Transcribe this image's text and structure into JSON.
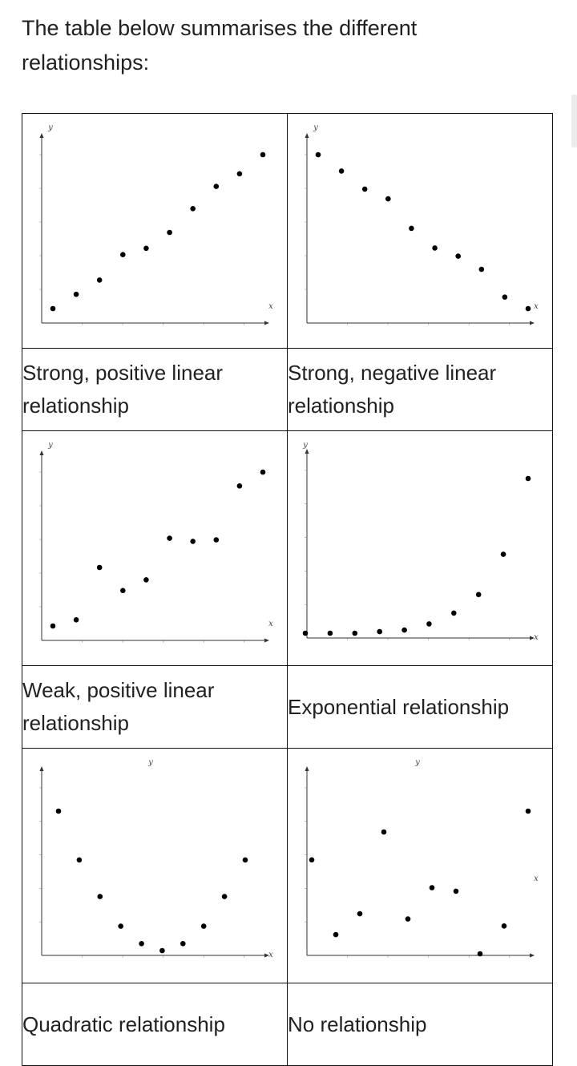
{
  "intro_text": "The table below summarises the different relationships:",
  "rows": [
    {
      "cells": [
        {
          "caption": "Strong, positive linear relationship",
          "chart_data": {
            "type": "scatter",
            "xlabel": "x",
            "ylabel": "y",
            "x": [
              1,
              2,
              3,
              4,
              5,
              6,
              7,
              8,
              9,
              10
            ],
            "y": [
              1.2,
              2.1,
              3.0,
              4.6,
              5.0,
              6.0,
              7.5,
              8.9,
              9.7,
              10.9
            ]
          }
        },
        {
          "caption": "Strong, negative linear relationship",
          "chart_data": {
            "type": "scatter",
            "xlabel": "x",
            "ylabel": "y",
            "x": [
              1,
              2,
              3,
              4,
              5,
              6,
              7,
              8,
              9,
              10
            ],
            "y": [
              10.4,
              9.4,
              8.3,
              7.7,
              5.9,
              4.7,
              4.2,
              3.4,
              1.7,
              1.0
            ]
          }
        }
      ]
    },
    {
      "cells": [
        {
          "caption": "Weak, positive linear relationship",
          "chart_data": {
            "type": "scatter",
            "xlabel": "x",
            "ylabel": "y",
            "x": [
              1,
              2,
              3,
              4,
              5,
              6,
              7,
              8,
              9,
              10
            ],
            "y": [
              1.0,
              1.4,
              4.8,
              3.3,
              4.0,
              6.7,
              6.5,
              6.6,
              10.1,
              11.0
            ]
          }
        },
        {
          "caption": "Exponential relationship",
          "chart_data": {
            "type": "scatter",
            "xlabel": "x",
            "ylabel": "y",
            "x": [
              0,
              1,
              2,
              3,
              4,
              5,
              6,
              7,
              8,
              9
            ],
            "y": [
              0.0,
              0.0,
              0.0,
              0.1,
              0.2,
              0.6,
              1.3,
              2.5,
              5.1,
              10.0
            ]
          }
        }
      ]
    },
    {
      "cells": [
        {
          "caption": "Quadratic relationship",
          "chart_data": {
            "type": "scatter",
            "xlabel": "x",
            "ylabel": "y",
            "x": [
              -4,
              -3,
              -2,
              -1,
              0,
              1,
              2,
              3,
              4,
              5
            ],
            "y": [
              8.0,
              5.2,
              3.1,
              1.4,
              0.4,
              0.0,
              0.4,
              1.4,
              3.1,
              5.2
            ]
          }
        },
        {
          "caption": "No relationship",
          "chart_data": {
            "type": "scatter",
            "xlabel": "x",
            "ylabel": "y",
            "x": [
              0,
              1,
              2,
              3,
              4,
              5,
              6,
              7,
              8,
              9
            ],
            "y": [
              6.0,
              1.7,
              2.9,
              7.6,
              2.6,
              4.4,
              4.2,
              0.6,
              2.2,
              8.8
            ]
          }
        }
      ]
    }
  ]
}
